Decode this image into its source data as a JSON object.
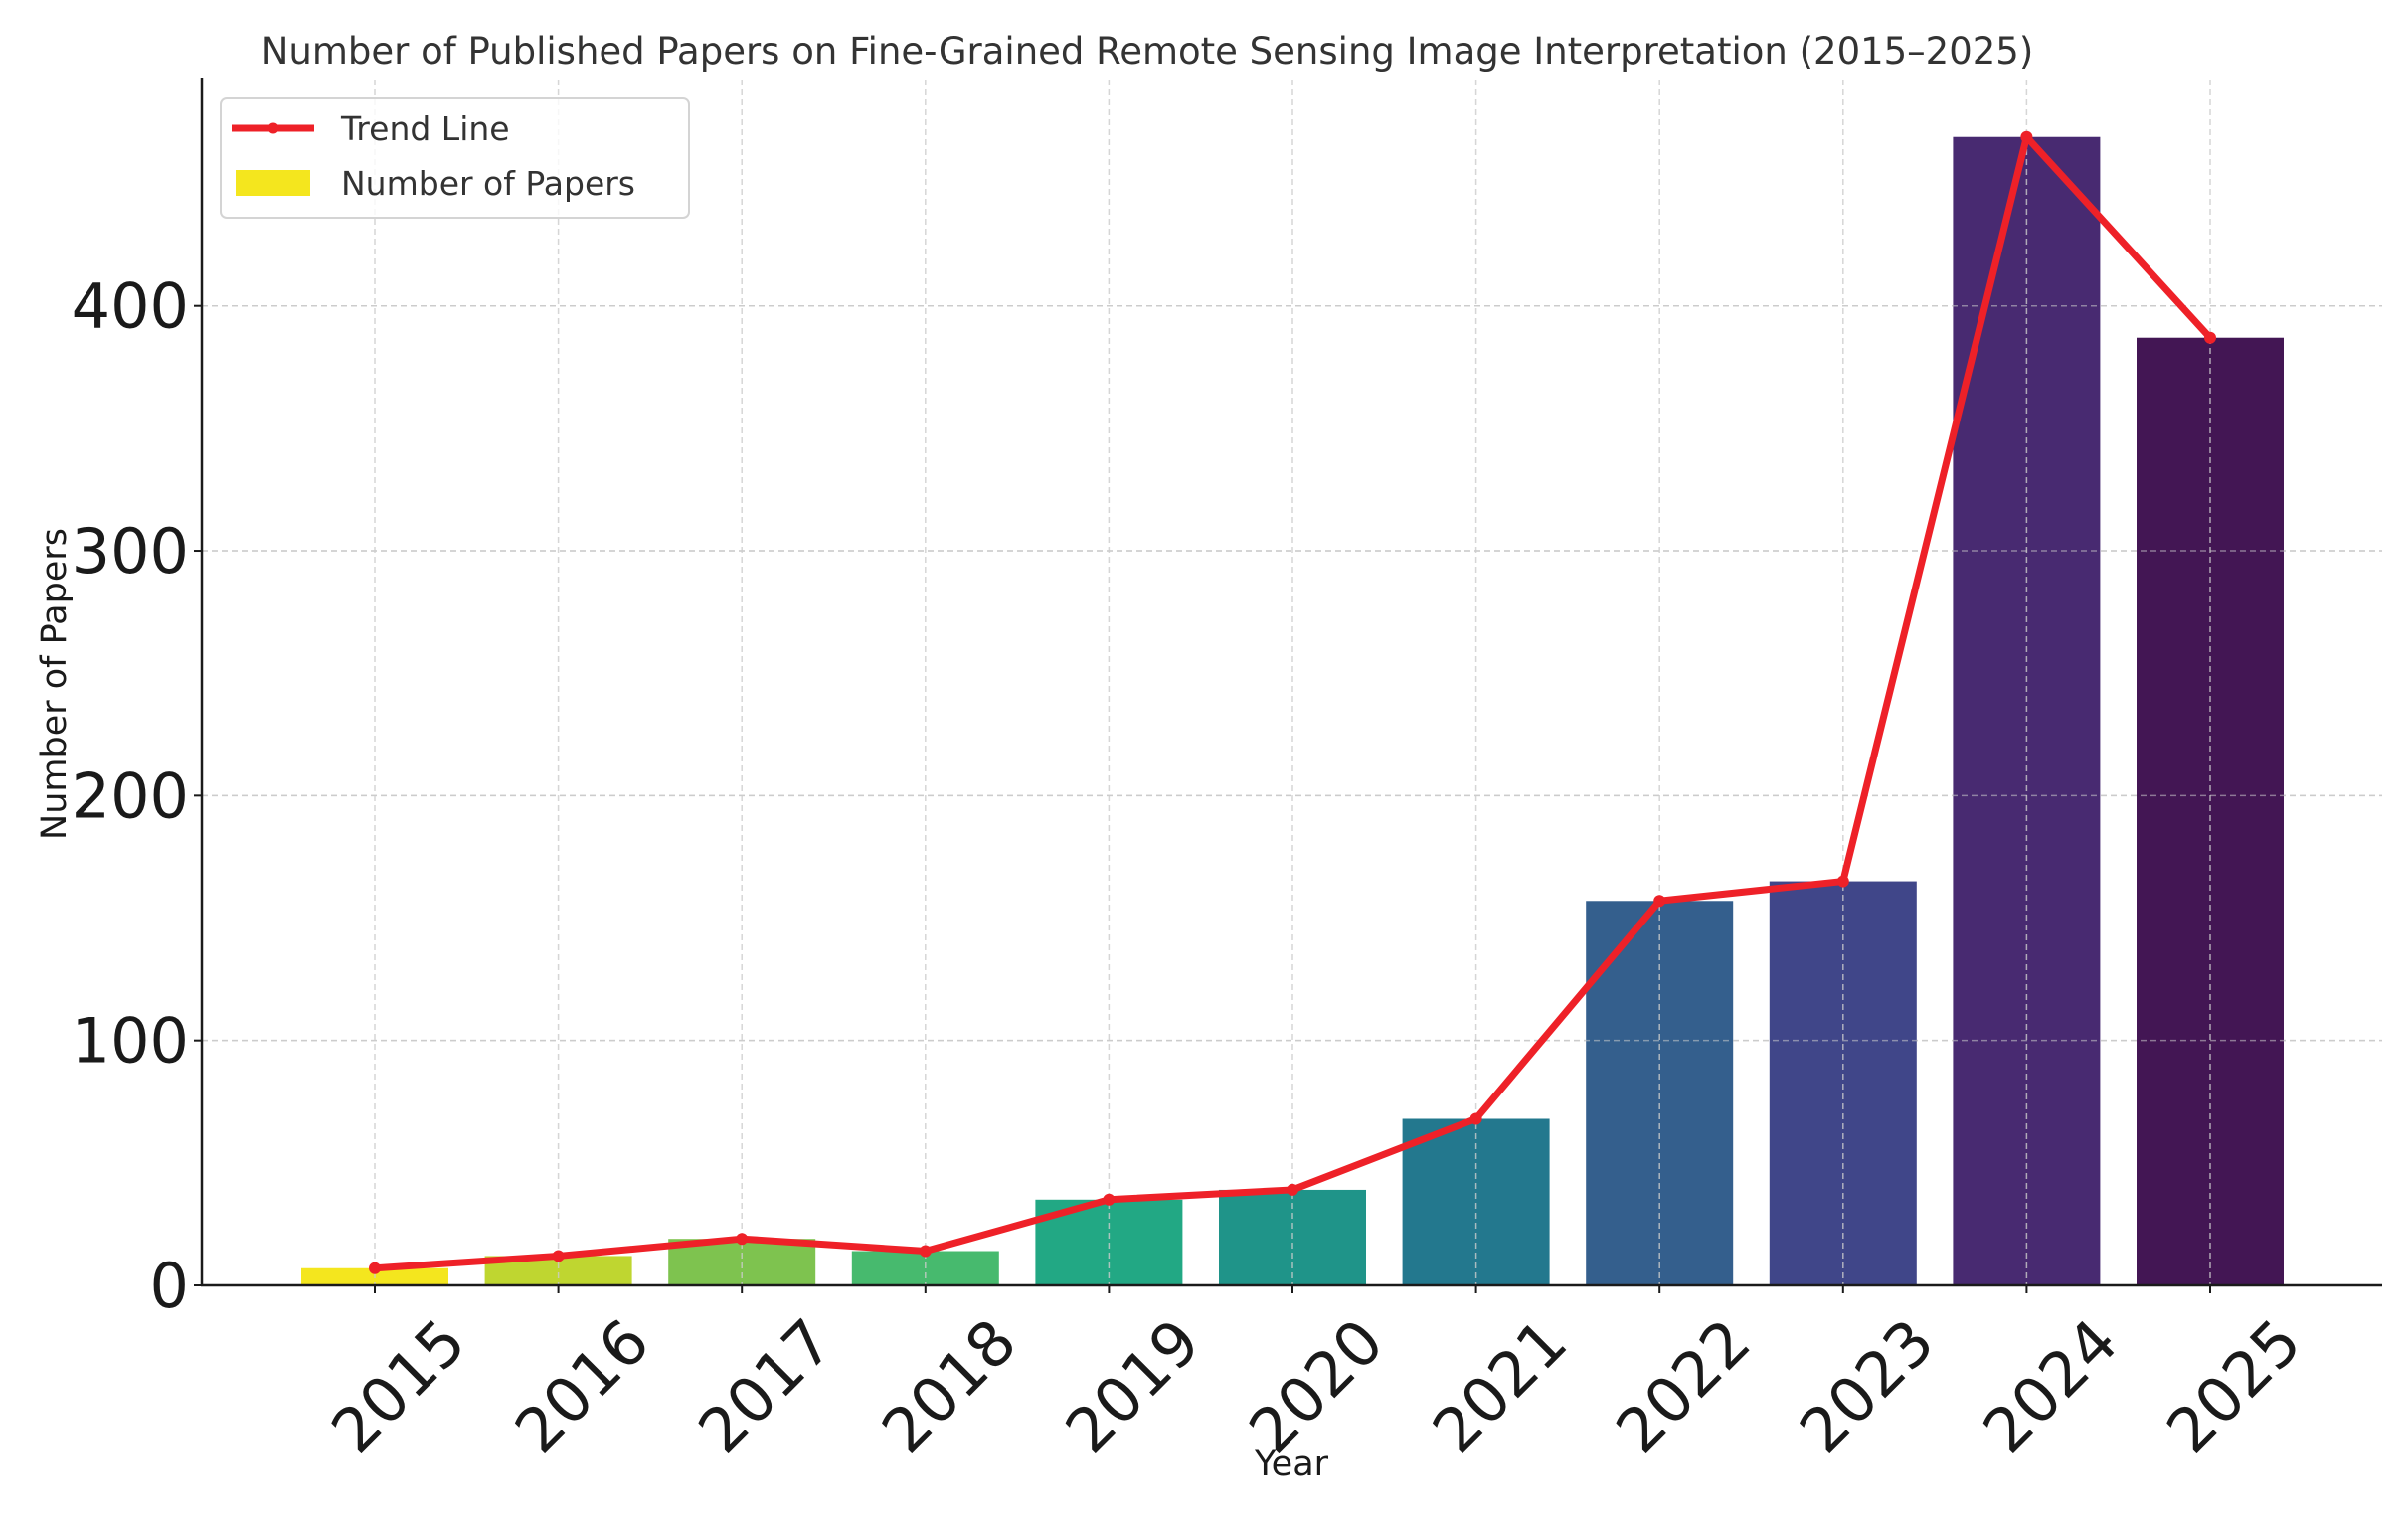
{
  "chart_data": {
    "type": "bar",
    "title": "Number of Published Papers on Fine-Grained Remote Sensing Image Interpretation (2015–2025)",
    "xlabel": "Year",
    "ylabel": "Number of Papers",
    "categories": [
      "2015",
      "2016",
      "2017",
      "2018",
      "2019",
      "2020",
      "2021",
      "2022",
      "2023",
      "2024",
      "2025"
    ],
    "series": [
      {
        "name": "Number of Papers",
        "type": "bar",
        "values": [
          7,
          12,
          19,
          14,
          35,
          39,
          68,
          157,
          165,
          469,
          387
        ],
        "colors": [
          "#f4e61e",
          "#bfd630",
          "#7ec34f",
          "#47ba6e",
          "#22a884",
          "#1f9489",
          "#23788e",
          "#345f8d",
          "#404689",
          "#482a71",
          "#431654"
        ]
      },
      {
        "name": "Trend Line",
        "type": "line",
        "values": [
          7,
          12,
          19,
          14,
          35,
          39,
          68,
          157,
          165,
          469,
          387
        ],
        "color": "#ee2128"
      }
    ],
    "yticks": [
      0,
      100,
      200,
      300,
      400
    ],
    "ylim": [
      0,
      492
    ],
    "grid": true,
    "legend_position": "upper left"
  },
  "legend": {
    "items": [
      {
        "label": "Trend Line",
        "color": "#ee2128",
        "kind": "line-marker"
      },
      {
        "label": "Number of Papers",
        "color": "#f4e61e",
        "kind": "patch"
      }
    ]
  }
}
